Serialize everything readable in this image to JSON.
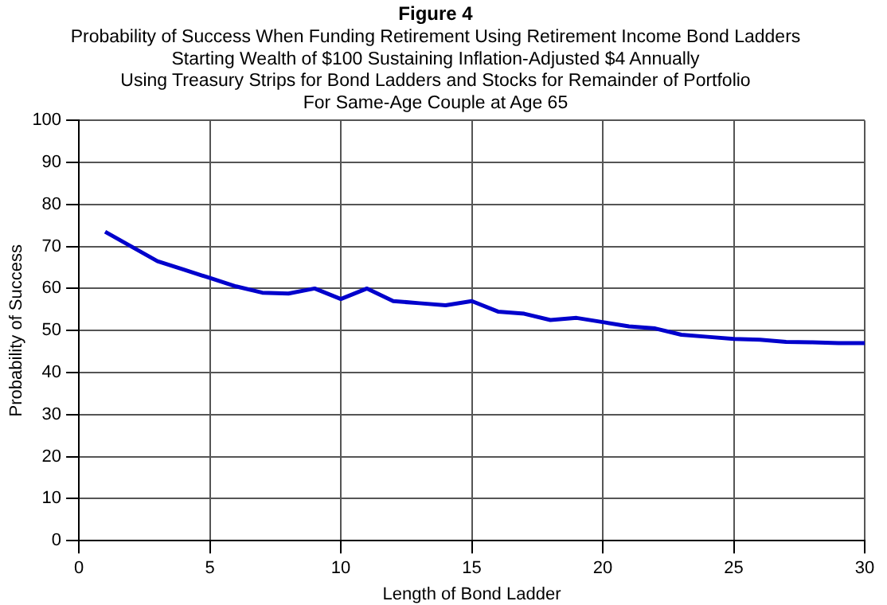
{
  "chart_data": {
    "type": "line",
    "title": "Figure 4",
    "subtitle": "Probability of Success When Funding Retirement Using Retirement Income Bond Ladders\nStarting Wealth of $100 Sustaining Inflation-Adjusted $4 Annually\nUsing Treasury Strips for Bond Ladders and Stocks for Remainder of Portfolio\nFor Same-Age Couple at Age 65",
    "xlabel": "Length of Bond Ladder",
    "ylabel": "Probability of Success",
    "x": [
      1,
      2,
      3,
      4,
      5,
      6,
      7,
      8,
      9,
      10,
      11,
      12,
      13,
      14,
      15,
      16,
      17,
      18,
      19,
      20,
      21,
      22,
      23,
      24,
      25,
      26,
      27,
      28,
      29,
      30
    ],
    "series": [
      {
        "color": "#0000cc",
        "values": [
          73.5,
          70,
          66.5,
          64.5,
          62.5,
          60.5,
          59,
          58.8,
          60,
          57.5,
          60,
          57,
          56.5,
          56,
          57,
          54.5,
          54,
          52.5,
          53,
          52,
          51,
          50.5,
          49,
          48.5,
          48,
          47.8,
          47.3,
          47.2,
          47,
          47
        ]
      }
    ],
    "xlim": [
      0,
      30
    ],
    "xticks": [
      0,
      5,
      10,
      15,
      20,
      25,
      30
    ],
    "ylim": [
      0,
      100
    ],
    "yticks": [
      0,
      10,
      20,
      30,
      40,
      50,
      60,
      70,
      80,
      90,
      100
    ],
    "grid": true,
    "legend": false,
    "marker": "none",
    "line_style": "solid"
  }
}
